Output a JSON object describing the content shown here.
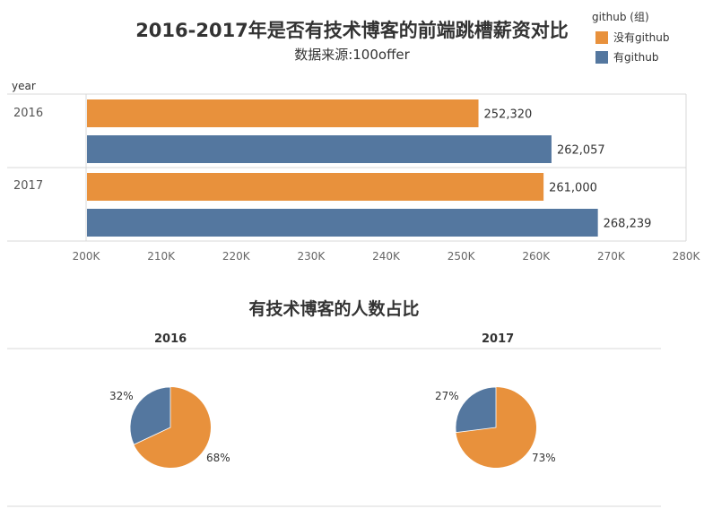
{
  "legend": {
    "title": "github (组)",
    "items": [
      {
        "label": "没有github",
        "color": "#e8913c"
      },
      {
        "label": "有github",
        "color": "#54779f"
      }
    ]
  },
  "chart_data": [
    {
      "type": "bar",
      "orientation": "horizontal",
      "title": "2016-2017年是否有技术博客的前端跳槽薪资对比",
      "subtitle": "数据来源:100offer",
      "row_header": "year",
      "categories": [
        "2016",
        "2017"
      ],
      "series": [
        {
          "name": "没有github",
          "color": "#e8913c",
          "values": [
            252320,
            261000
          ],
          "labels": [
            "252,320",
            "261,000"
          ]
        },
        {
          "name": "有github",
          "color": "#54779f",
          "values": [
            262057,
            268239
          ],
          "labels": [
            "262,057",
            "268,239"
          ]
        }
      ],
      "xlim": [
        200000,
        280000
      ],
      "ticks": [
        200000,
        210000,
        220000,
        230000,
        240000,
        250000,
        260000,
        270000,
        280000
      ],
      "tick_labels": [
        "200K",
        "210K",
        "220K",
        "230K",
        "240K",
        "250K",
        "260K",
        "270K",
        "280K"
      ],
      "grid": false
    },
    {
      "type": "pie",
      "title": "有技术博客的人数占比",
      "pies": [
        {
          "year": "2016",
          "slices": [
            {
              "name": "有github",
              "value": 32,
              "label": "32%",
              "color": "#54779f"
            },
            {
              "name": "没有github",
              "value": 68,
              "label": "68%",
              "color": "#e8913c"
            }
          ]
        },
        {
          "year": "2017",
          "slices": [
            {
              "name": "有github",
              "value": 27,
              "label": "27%",
              "color": "#54779f"
            },
            {
              "name": "没有github",
              "value": 73,
              "label": "73%",
              "color": "#e8913c"
            }
          ]
        }
      ]
    }
  ]
}
